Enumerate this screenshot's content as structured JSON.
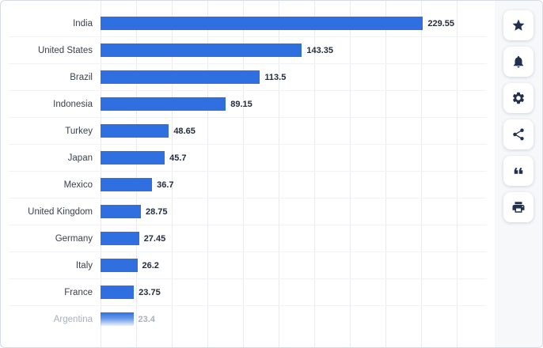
{
  "chart": {
    "bar_color": "#2f6fe0",
    "faded_last_row": true
  },
  "chart_data": {
    "type": "bar",
    "orientation": "horizontal",
    "title": "",
    "xlabel": "",
    "ylabel": "",
    "categories": [
      "India",
      "United States",
      "Brazil",
      "Indonesia",
      "Turkey",
      "Japan",
      "Mexico",
      "United Kingdom",
      "Germany",
      "Italy",
      "France",
      "Argentina"
    ],
    "values": [
      229.55,
      143.35,
      113.5,
      89.15,
      48.65,
      45.7,
      36.7,
      28.75,
      27.45,
      26.2,
      23.75,
      23.4
    ],
    "xlim": [
      0,
      250
    ],
    "grid": "vertical",
    "legend": "none"
  },
  "toolbar": {
    "icon_color": "#22304f",
    "buttons": [
      {
        "name": "star",
        "icon": "star-icon"
      },
      {
        "name": "bell",
        "icon": "bell-icon"
      },
      {
        "name": "gear",
        "icon": "gear-icon"
      },
      {
        "name": "share",
        "icon": "share-icon"
      },
      {
        "name": "quote",
        "icon": "quote-icon"
      },
      {
        "name": "print",
        "icon": "print-icon"
      }
    ]
  }
}
